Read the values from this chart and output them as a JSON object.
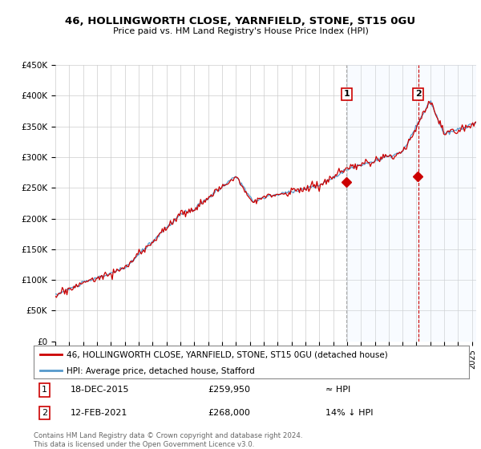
{
  "title": "46, HOLLINGWORTH CLOSE, YARNFIELD, STONE, ST15 0GU",
  "subtitle": "Price paid vs. HM Land Registry's House Price Index (HPI)",
  "ylim": [
    0,
    450000
  ],
  "yticks": [
    0,
    50000,
    100000,
    150000,
    200000,
    250000,
    300000,
    350000,
    400000,
    450000
  ],
  "ytick_labels": [
    "£0",
    "£50K",
    "£100K",
    "£150K",
    "£200K",
    "£250K",
    "£300K",
    "£350K",
    "£400K",
    "£450K"
  ],
  "xlim_start": 1995.0,
  "xlim_end": 2025.3,
  "hpi_color": "#5599cc",
  "price_color": "#cc0000",
  "shade_color": "#ddeeff",
  "marker1_date": 2015.96,
  "marker1_price": 259950,
  "marker1_label": "18-DEC-2015",
  "marker1_hpi_note": "≈ HPI",
  "marker2_date": 2021.12,
  "marker2_price": 268000,
  "marker2_label": "12-FEB-2021",
  "marker2_hpi_note": "14% ↓ HPI",
  "footer": "Contains HM Land Registry data © Crown copyright and database right 2024.\nThis data is licensed under the Open Government Licence v3.0.",
  "legend_line1": "46, HOLLINGWORTH CLOSE, YARNFIELD, STONE, ST15 0GU (detached house)",
  "legend_line2": "HPI: Average price, detached house, Stafford",
  "background_color": "#ffffff"
}
